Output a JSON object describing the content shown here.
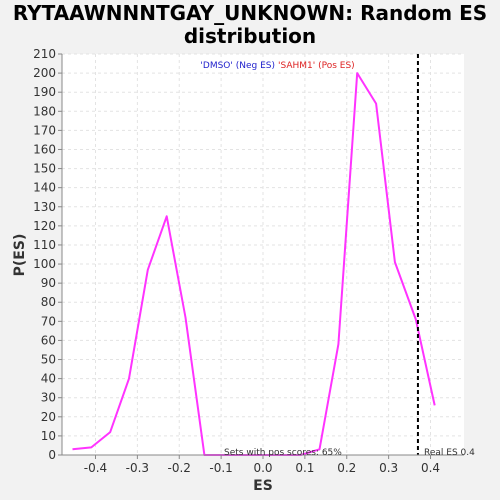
{
  "chart_data": {
    "type": "line",
    "title_line1": "RYTAAWNNNTGAY_UNKNOWN: Random ES",
    "title_line2": "distribution",
    "xlabel": "ES",
    "ylabel": "P(ES)",
    "xlim": [
      -0.48,
      0.48
    ],
    "ylim": [
      0,
      210
    ],
    "x_ticks": [
      -0.4,
      -0.3,
      -0.2,
      -0.1,
      0.0,
      0.1,
      0.2,
      0.3,
      0.4
    ],
    "x_tick_labels": [
      "-0.4",
      "-0.3",
      "-0.2",
      "-0.1",
      "0.0",
      "0.1",
      "0.2",
      "0.3",
      "0.4"
    ],
    "y_ticks": [
      0,
      10,
      20,
      30,
      40,
      50,
      60,
      70,
      80,
      90,
      100,
      110,
      120,
      130,
      140,
      150,
      160,
      170,
      180,
      190,
      200,
      210
    ],
    "y_tick_labels": [
      "0",
      "10",
      "20",
      "30",
      "40",
      "50",
      "60",
      "70",
      "80",
      "90",
      "100",
      "110",
      "120",
      "130",
      "140",
      "150",
      "160",
      "170",
      "180",
      "190",
      "200",
      "210"
    ],
    "grid": true,
    "series": [
      {
        "color": "#ff33ff",
        "x": [
          -0.455,
          -0.41,
          -0.365,
          -0.32,
          -0.275,
          -0.23,
          -0.185,
          -0.14,
          -0.095,
          -0.05,
          0.0,
          0.05,
          0.09,
          0.135,
          0.18,
          0.225,
          0.27,
          0.315,
          0.365,
          0.41
        ],
        "y": [
          3,
          4,
          12,
          40,
          97,
          125,
          72,
          0,
          0,
          0,
          0,
          0,
          0,
          3,
          58,
          200,
          184,
          101,
          71,
          26
        ]
      }
    ],
    "legend": [
      {
        "label": "'DMSO' (Neg ES)",
        "color": "#2222cc"
      },
      {
        "label": "'SAHM1' (Pos ES)",
        "color": "#dd2222"
      }
    ],
    "legend_placement": "top-center",
    "real_es": {
      "value": 0.37,
      "label": "Real ES 0.4"
    },
    "annotation": "Sets with pos scores: 65%"
  }
}
